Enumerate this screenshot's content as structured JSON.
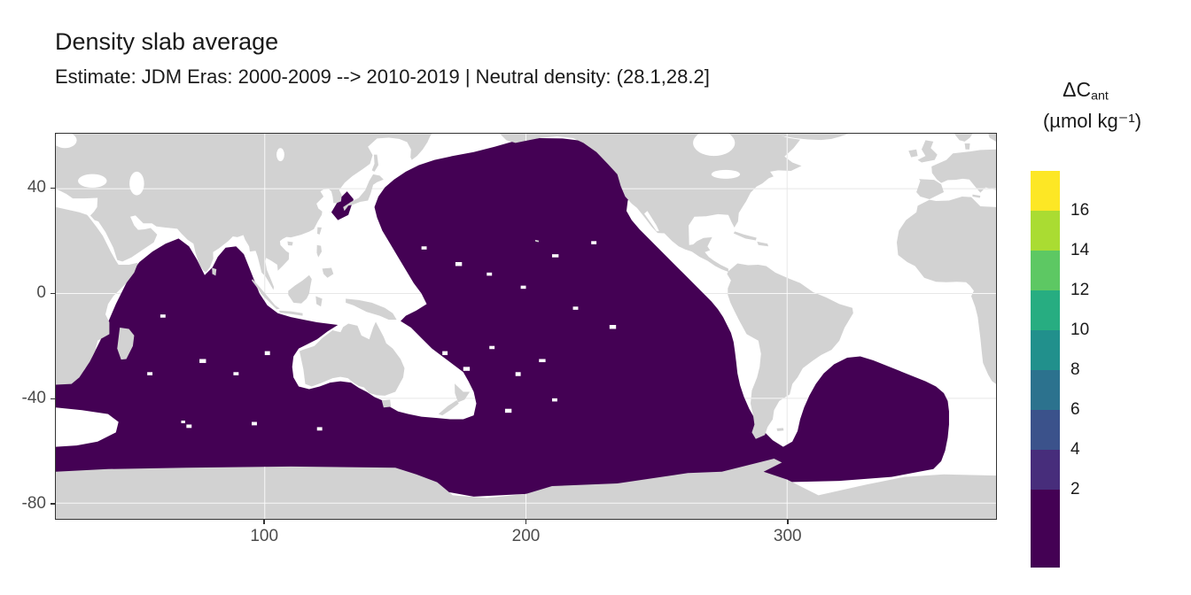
{
  "title": "Density slab average",
  "subtitle": "Estimate: JDM Eras: 2000-2009 --> 2010-2019 | Neutral density: (28.1,28.2]",
  "axes": {
    "x_ticks": [
      "100",
      "200",
      "300"
    ],
    "y_ticks": [
      "40",
      "0",
      "-40",
      "-80"
    ]
  },
  "legend": {
    "title_main": "ΔC",
    "title_sub": "ant",
    "units": "(µmol kg⁻¹)",
    "labels": [
      "16",
      "14",
      "12",
      "10",
      "8",
      "6",
      "4",
      "2"
    ],
    "colors": [
      "#FDE725",
      "#AADC32",
      "#5DC863",
      "#27AD81",
      "#21908C",
      "#2C728E",
      "#3B528B",
      "#472D7B",
      "#440154"
    ]
  },
  "map": {
    "land_color": "#d2d2d2",
    "no_data_color": "#ffffff",
    "data_color": "#440154",
    "grid_color": "#e7e7e7"
  },
  "chart_data": {
    "type": "heatmap",
    "title": "Density slab average",
    "subtitle": "Estimate: JDM Eras: 2000-2009 --> 2010-2019 | Neutral density: (28.1,28.2]",
    "projection": "equirectangular world map, longitude 20-380 (0-360 convention), latitude about -85 to 61",
    "x_axis": {
      "label": null,
      "ticks": [
        100,
        200,
        300
      ],
      "range": [
        20,
        380
      ]
    },
    "y_axis": {
      "label": null,
      "ticks": [
        40,
        0,
        -40,
        -80
      ],
      "range": [
        -85,
        61
      ]
    },
    "colorbar": {
      "title": "ΔCant (µmol kg⁻¹)",
      "palette": "viridis, discrete bins",
      "bin_boundary_labels": [
        16,
        14,
        12,
        10,
        8,
        6,
        4,
        2
      ],
      "colors_top_to_bottom": [
        "#FDE725",
        "#AADC32",
        "#5DC863",
        "#27AD81",
        "#21908C",
        "#2C728E",
        "#3B528B",
        "#472D7B",
        "#440154"
      ]
    },
    "values_summary": "All mapped ΔCant grid cells fall in the lowest bin (0-2 µmol kg⁻¹) and are drawn in dark purple #440154, covering the Indian Ocean, the Pacific Ocean, the Southern Ocean and the southwest/south Atlantic; land masses are gray; ocean areas with no data (North Atlantic, Arctic, marginal seas) are white",
    "grid": "on, light gray lines at x = 100, 200, 300 and y = 40, 0, -40, -80"
  }
}
